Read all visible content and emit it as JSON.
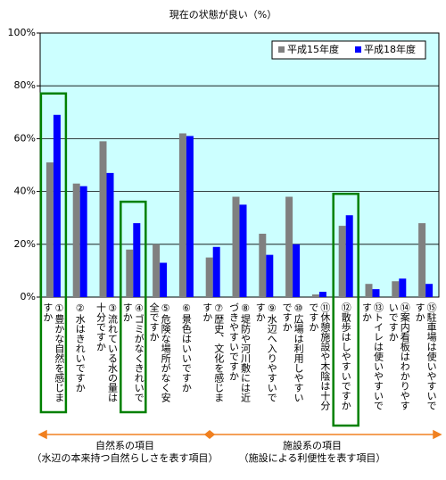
{
  "chart_data": {
    "type": "bar",
    "title": "現在の状態が良い（%）",
    "categories": [
      "①豊かな自然を感じますか",
      "②水はきれいですか",
      "③流れている水の量は十分ですか",
      "④ゴミがなくきれいですか",
      "⑤危険な場所がなく安全ですか",
      "⑥景色はいいですか",
      "⑦歴史、文化を感じますか",
      "⑧堤防や河川敷には近づきやすいですか",
      "⑨水辺へ入りやすいですか",
      "⑩広場は利用しやすいですか",
      "⑪休憩施設や木陰は十分ですか",
      "⑫散歩はしやすいですか",
      "⑬トイレは使いやすいですか",
      "⑭案内看板はわかりやすいですか",
      "⑮駐車場は使いやすいですか"
    ],
    "series": [
      {
        "name": "平成15年度",
        "color": "#808080",
        "values": [
          51,
          43,
          59,
          18,
          20,
          62,
          15,
          38,
          24,
          38,
          1,
          27,
          5,
          6,
          28
        ]
      },
      {
        "name": "平成18年度",
        "color": "#0000ff",
        "values": [
          69,
          42,
          47,
          28,
          13,
          61,
          19,
          35,
          16,
          20,
          2,
          31,
          3,
          7,
          5
        ]
      }
    ],
    "ylim": [
      0,
      100
    ],
    "yticks": [
      {
        "value": 0,
        "label": "0%"
      },
      {
        "value": 20,
        "label": "20%"
      },
      {
        "value": 40,
        "label": "40%"
      },
      {
        "value": 60,
        "label": "60%"
      },
      {
        "value": 80,
        "label": "80%"
      },
      {
        "value": 100,
        "label": "100%"
      }
    ],
    "grid": true,
    "legend": "upper right",
    "highlighted_categories": [
      0,
      3,
      11
    ],
    "annotations": [
      "自然系の項目",
      "（水辺の本来持つ自然らしさを表す項目）",
      "施設系の項目",
      "（施設による利便性を表す項目）"
    ]
  }
}
